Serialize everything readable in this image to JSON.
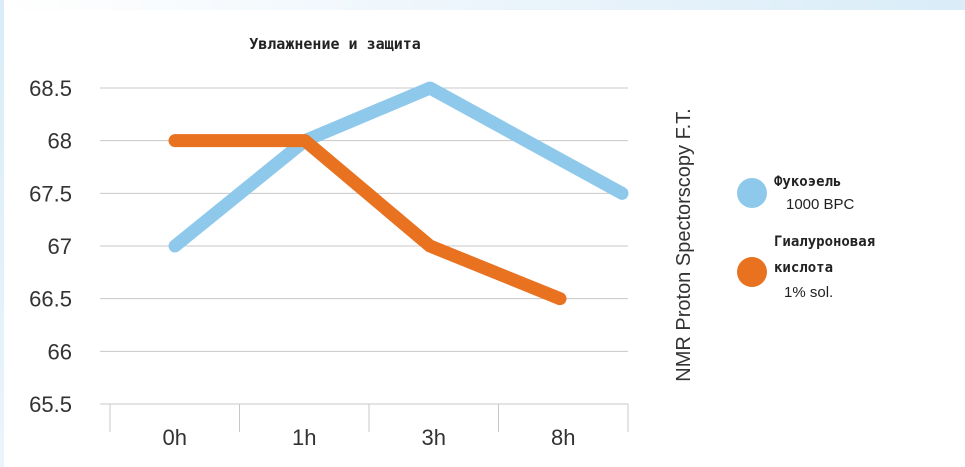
{
  "chart_data": {
    "type": "line",
    "title": "Увлажнение и защита",
    "ylabel": "NMR Proton Spectorscopy F.T.",
    "xlabel": "",
    "categories": [
      "0h",
      "1h",
      "3h",
      "8h"
    ],
    "ylim": [
      65.5,
      68.5
    ],
    "yticks": [
      "68.5",
      "68",
      "67.5",
      "67",
      "66.5",
      "66",
      "65.5"
    ],
    "grid": true,
    "legend_position": "right",
    "series": [
      {
        "name_line1": "Фукоэель",
        "name_line2": "1000 BPC",
        "color": "#8ec9ec",
        "values": [
          67,
          68,
          68.5,
          67.5
        ]
      },
      {
        "name_line1": "Гиалуроновая",
        "name_line2": "кислота",
        "name_line3": "1% sol.",
        "color": "#e8721f",
        "values": [
          68,
          68,
          67,
          66.5
        ]
      }
    ]
  }
}
